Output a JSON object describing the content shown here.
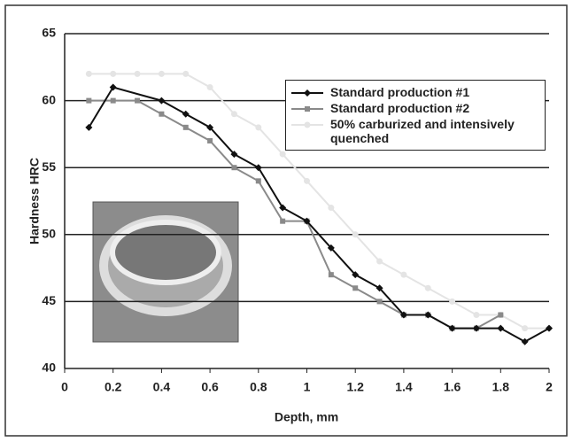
{
  "chart_data": {
    "type": "line",
    "x_label": "Depth, mm",
    "y_label": "Hardness HRC",
    "xlim": [
      0,
      2
    ],
    "xticks": [
      0,
      0.2,
      0.4,
      0.6,
      0.8,
      1,
      1.2,
      1.4,
      1.6,
      1.8,
      2
    ],
    "ylim": [
      40,
      65
    ],
    "yticks": [
      40,
      45,
      50,
      55,
      60,
      65
    ],
    "grid": true,
    "series": [
      {
        "name": "Standard production #1",
        "color": "#111111",
        "marker": "diamond",
        "x": [
          0.1,
          0.2,
          0.4,
          0.5,
          0.6,
          0.7,
          0.8,
          0.9,
          1.0,
          1.1,
          1.2,
          1.3,
          1.4,
          1.5,
          1.6,
          1.7,
          1.8,
          1.9,
          2.0
        ],
        "values": [
          58,
          61,
          60,
          59,
          58,
          56,
          55,
          52,
          51,
          49,
          47,
          46,
          44,
          44,
          43,
          43,
          43,
          42,
          43
        ]
      },
      {
        "name": "Standard production #2",
        "color": "#8a8a8a",
        "marker": "square",
        "x": [
          0.1,
          0.2,
          0.3,
          0.4,
          0.5,
          0.6,
          0.7,
          0.8,
          0.9,
          1.0,
          1.1,
          1.2,
          1.3,
          1.4,
          1.5,
          1.6,
          1.7,
          1.8
        ],
        "values": [
          60,
          60,
          60,
          59,
          58,
          57,
          55,
          54,
          51,
          51,
          47,
          46,
          45,
          44,
          44,
          43,
          43,
          44
        ]
      },
      {
        "name": "50% carburized and intensively quenched",
        "color": "#e4e4e4",
        "marker": "circle",
        "x": [
          0.1,
          0.2,
          0.3,
          0.4,
          0.5,
          0.6,
          0.7,
          0.8,
          0.9,
          1.0,
          1.1,
          1.2,
          1.3,
          1.4,
          1.5,
          1.6,
          1.7,
          1.8,
          1.9,
          2.0
        ],
        "values": [
          62,
          62,
          62,
          62,
          62,
          61,
          59,
          58,
          56,
          54,
          52,
          50,
          48,
          47,
          46,
          45,
          44,
          44,
          43,
          43
        ]
      }
    ]
  }
}
